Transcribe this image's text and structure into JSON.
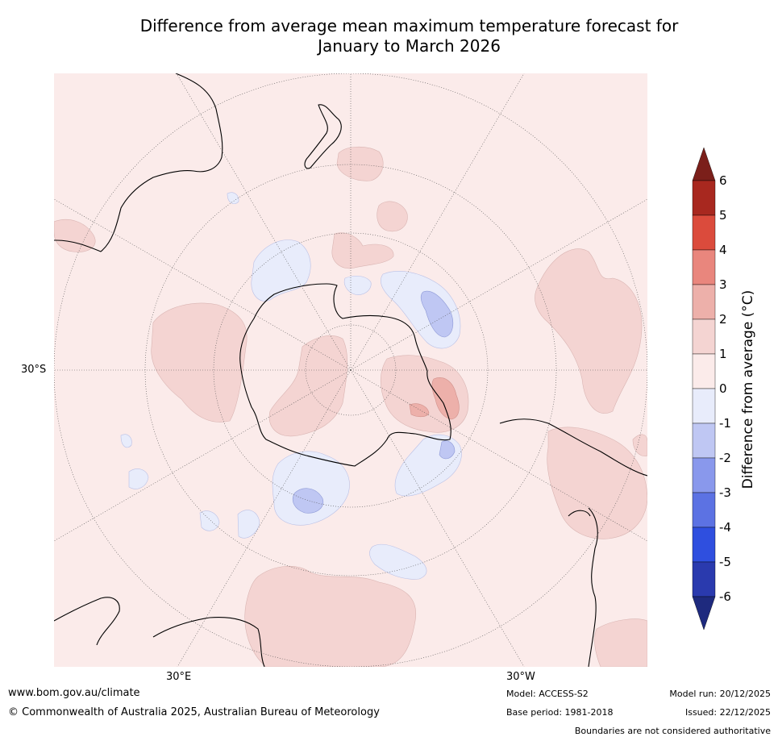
{
  "title": {
    "line1": "Difference from average mean maximum temperature forecast for",
    "line2": "January to March 2026"
  },
  "map": {
    "projection": "south-polar-stereographic",
    "lat_label": "30°S",
    "lon_labels": [
      "30°E",
      "30°W"
    ],
    "region_labels": []
  },
  "legend": {
    "title": "Difference from average (°C)",
    "ticks": [
      "6",
      "5",
      "4",
      "3",
      "2",
      "1",
      "0",
      "-1",
      "-2",
      "-3",
      "-4",
      "-5",
      "-6"
    ],
    "colors": {
      "above_open_end": "#7b1f1a",
      "5_to_6": "#a8281f",
      "4_to_5": "#db4b3c",
      "3_to_4": "#e9867d",
      "2_to_3": "#edb0aa",
      "1_to_2": "#f4d4d2",
      "0_to_1": "#fbebea",
      "minus1_to_0": "#e8ecfb",
      "minus2_to_minus1": "#bfc7f3",
      "minus3_to_minus2": "#8998ec",
      "minus4_to_minus3": "#5c72e3",
      "minus5_to_minus4": "#2f4fdf",
      "minus6_to_minus5": "#2a3aae",
      "below_open_end": "#1e2a7e"
    }
  },
  "footer": {
    "website": "www.bom.gov.au/climate",
    "copyright": "© Commonwealth of Australia 2025, Australian Bureau of Meteorology",
    "model": "Model: ACCESS-S2",
    "base_period": "Base period: 1981-2018",
    "model_run": "Model run: 20/12/2025",
    "issued": "Issued: 22/12/2025",
    "disclaimer": "Boundaries are not considered authoritative"
  }
}
